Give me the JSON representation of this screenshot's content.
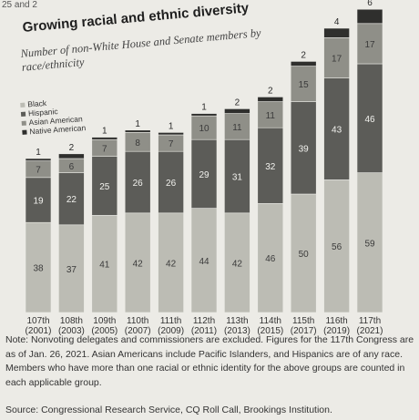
{
  "top_snippet": "25 and 2",
  "chart_data": {
    "type": "bar",
    "stacked": true,
    "title": "Growing racial and ethnic diversity",
    "subtitle": "Number of non-White House and Senate members by race/ethnicity",
    "categories": [
      "107th",
      "108th",
      "109th",
      "110th",
      "111th",
      "112th",
      "113th",
      "114th",
      "115th",
      "116th",
      "117th"
    ],
    "category_years": [
      "(2001)",
      "(2003)",
      "(2005)",
      "(2007)",
      "(2009)",
      "(2011)",
      "(2013)",
      "(2015)",
      "(2017)",
      "(2019)",
      "(2021)"
    ],
    "series": [
      {
        "name": "Black",
        "color": "#bcbcb4",
        "values": [
          38,
          37,
          41,
          42,
          42,
          44,
          42,
          46,
          50,
          56,
          59
        ]
      },
      {
        "name": "Hispanic",
        "color": "#5c5c58",
        "values": [
          19,
          22,
          25,
          26,
          26,
          29,
          31,
          32,
          39,
          43,
          46
        ]
      },
      {
        "name": "Asian American",
        "color": "#8f8f88",
        "values": [
          7,
          6,
          7,
          8,
          7,
          10,
          11,
          11,
          15,
          17,
          17
        ]
      },
      {
        "name": "Native American",
        "color": "#2f2f2d",
        "values": [
          1,
          2,
          1,
          1,
          1,
          1,
          2,
          2,
          2,
          4,
          6
        ]
      }
    ],
    "ylim": [
      0,
      130
    ],
    "grid": false,
    "legend_position": "top-left"
  },
  "note": "Note: Nonvoting delegates and commissioners are excluded. Figures for the 117th Congress are as of Jan. 26, 2021. Asian Americans include Pacific Islanders, and Hispanics are of any race. Members who have more than one racial or ethnic identity for the above groups are counted in each applicable group.",
  "source": "Source: Congressional Research Service, CQ Roll Call, Brookings Institution."
}
